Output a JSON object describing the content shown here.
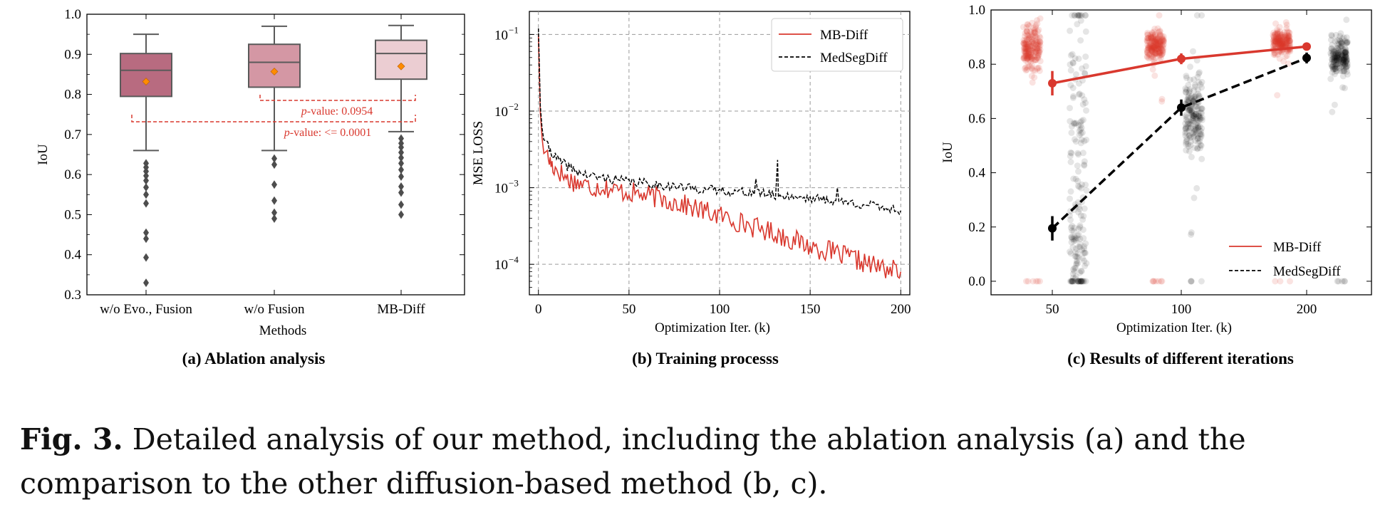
{
  "chart_data": [
    {
      "type": "box",
      "panel_label": "(a) Ablation analysis",
      "xlabel": "Methods",
      "ylabel": "IoU",
      "ylim": [
        0.3,
        1.0
      ],
      "yticks": [
        0.3,
        0.4,
        0.5,
        0.6,
        0.7,
        0.8,
        0.9,
        1.0
      ],
      "categories": [
        "w/o Evo., Fusion",
        "w/o Fusion",
        "MB-Diff"
      ],
      "boxes": [
        {
          "category": "w/o Evo., Fusion",
          "color": "#b86b80",
          "whisker_low": 0.66,
          "q1": 0.795,
          "median": 0.86,
          "q3": 0.902,
          "whisker_high": 0.95,
          "mean": 0.832,
          "outliers": [
            0.628,
            0.618,
            0.608,
            0.597,
            0.585,
            0.568,
            0.55,
            0.528,
            0.455,
            0.44,
            0.393,
            0.33
          ]
        },
        {
          "category": "w/o Fusion",
          "color": "#d497a4",
          "whisker_low": 0.66,
          "q1": 0.818,
          "median": 0.88,
          "q3": 0.925,
          "whisker_high": 0.97,
          "mean": 0.857,
          "outliers": [
            0.64,
            0.625,
            0.575,
            0.535,
            0.505,
            0.49
          ]
        },
        {
          "category": "MB-Diff",
          "color": "#ebcdd2",
          "whisker_low": 0.707,
          "q1": 0.838,
          "median": 0.902,
          "q3": 0.935,
          "whisker_high": 0.972,
          "mean": 0.87,
          "outliers": [
            0.69,
            0.678,
            0.668,
            0.655,
            0.642,
            0.628,
            0.612,
            0.595,
            0.57,
            0.555,
            0.525,
            0.5
          ]
        }
      ],
      "annotations": [
        {
          "prefix": "p",
          "text": "-value: 0.0954",
          "between": [
            "w/o Fusion",
            "MB-Diff"
          ]
        },
        {
          "prefix": "p",
          "text": "-value: <= 0.0001",
          "between": [
            "w/o Evo., Fusion",
            "MB-Diff"
          ]
        }
      ],
      "colors": {
        "mean_marker": "#ff8c00",
        "annotation": "#d9382e"
      }
    },
    {
      "type": "line",
      "panel_label": "(b) Training processs",
      "xlabel": "Optimization Iter. (k)",
      "ylabel": "MSE LOSS",
      "yscale": "log",
      "xlim": [
        -5,
        205
      ],
      "ylim": [
        4e-05,
        0.2
      ],
      "xticks": [
        0,
        50,
        100,
        150,
        200
      ],
      "yticks": [
        0.0001,
        0.001,
        0.01,
        0.1
      ],
      "ytick_labels": [
        {
          "base": "10",
          "exp": "−4"
        },
        {
          "base": "10",
          "exp": "−3"
        },
        {
          "base": "10",
          "exp": "−2"
        },
        {
          "base": "10",
          "exp": "−1"
        }
      ],
      "grid": true,
      "legend_position": "top-right",
      "series": [
        {
          "name": "MB-Diff",
          "color": "#d9382e",
          "style": "solid",
          "x": [
            0,
            0.5,
            1,
            2,
            3,
            5,
            8,
            12,
            16,
            20,
            25,
            30,
            35,
            40,
            45,
            50,
            55,
            60,
            65,
            70,
            75,
            80,
            85,
            90,
            95,
            100,
            105,
            110,
            115,
            120,
            125,
            130,
            135,
            140,
            145,
            150,
            155,
            160,
            165,
            170,
            175,
            180,
            185,
            190,
            195,
            200
          ],
          "y": [
            0.1,
            0.03,
            0.01,
            0.0045,
            0.0033,
            0.0025,
            0.0019,
            0.0016,
            0.0013,
            0.0012,
            0.0011,
            0.001,
            0.00105,
            0.00095,
            0.0009,
            0.00088,
            0.00082,
            0.00078,
            0.00075,
            0.0007,
            0.00065,
            0.0006,
            0.00055,
            0.0005,
            0.00047,
            0.00043,
            0.0004,
            0.00036,
            0.00033,
            0.0003,
            0.00028,
            0.00026,
            0.00023,
            0.00021,
            0.00019,
            0.00017,
            0.00016,
            0.00015,
            0.000135,
            0.000125,
            0.000115,
            0.000105,
            9.5e-05,
            9e-05,
            8.5e-05,
            8e-05
          ]
        },
        {
          "name": "MedSegDiff",
          "color": "#000000",
          "style": "dashed",
          "x": [
            0,
            0.5,
            1,
            2,
            3,
            5,
            8,
            12,
            16,
            20,
            25,
            30,
            35,
            40,
            45,
            50,
            55,
            60,
            65,
            70,
            75,
            80,
            85,
            90,
            95,
            100,
            105,
            110,
            115,
            120,
            125,
            130,
            135,
            140,
            145,
            150,
            155,
            160,
            165,
            170,
            175,
            180,
            185,
            190,
            195,
            200
          ],
          "y": [
            0.12,
            0.04,
            0.012,
            0.006,
            0.0045,
            0.0035,
            0.0027,
            0.0022,
            0.0019,
            0.0017,
            0.0015,
            0.0014,
            0.00135,
            0.0013,
            0.00125,
            0.0012,
            0.00117,
            0.00114,
            0.0011,
            0.00107,
            0.00104,
            0.001,
            0.00098,
            0.00096,
            0.00094,
            0.00092,
            0.0009,
            0.00088,
            0.00087,
            0.00086,
            0.00084,
            0.0008,
            0.00079,
            0.00077,
            0.00075,
            0.00073,
            0.00071,
            0.00069,
            0.00067,
            0.00065,
            0.00062,
            0.0006,
            0.00058,
            0.00056,
            0.00053,
            0.0005
          ]
        }
      ],
      "spikes": [
        {
          "x": 132,
          "y": 0.0023
        },
        {
          "x": 120,
          "y": 0.0013
        },
        {
          "x": 165,
          "y": 0.001
        }
      ]
    },
    {
      "type": "scatter",
      "panel_label": "(c) Results of different iterations",
      "xlabel": "Optimization Iter. (k)",
      "ylabel": "IoU",
      "xlim": [
        20,
        240
      ],
      "ylim": [
        -0.05,
        1.0
      ],
      "xticks": [
        50,
        100,
        200
      ],
      "yticks": [
        0.0,
        0.2,
        0.4,
        0.6,
        0.8,
        1.0
      ],
      "legend_position": "bottom-right",
      "series": [
        {
          "name": "MB-Diff",
          "color": "#d9382e",
          "style": "solid",
          "x": [
            50,
            100,
            200
          ],
          "y": [
            0.73,
            0.82,
            0.865
          ],
          "err": [
            0.045,
            0.02,
            0.012
          ]
        },
        {
          "name": "MedSegDiff",
          "color": "#000000",
          "style": "dashed",
          "x": [
            50,
            100,
            200
          ],
          "y": [
            0.195,
            0.64,
            0.823
          ],
          "err": [
            0.045,
            0.03,
            0.02
          ]
        }
      ],
      "strips": [
        {
          "series": "MB-Diff",
          "x": 40,
          "color": "#d9382e",
          "center": 0.86,
          "spread": 0.12
        },
        {
          "series": "MedSegDiff",
          "x": 60,
          "color": "#000000",
          "center": 0.3,
          "spread": 0.35
        },
        {
          "series": "MB-Diff",
          "x": 90,
          "color": "#d9382e",
          "center": 0.86,
          "spread": 0.08
        },
        {
          "series": "MedSegDiff",
          "x": 110,
          "color": "#000000",
          "center": 0.62,
          "spread": 0.2
        },
        {
          "series": "MB-Diff",
          "x": 180,
          "color": "#d9382e",
          "center": 0.88,
          "spread": 0.06
        },
        {
          "series": "MedSegDiff",
          "x": 220,
          "color": "#000000",
          "center": 0.83,
          "spread": 0.1
        }
      ]
    }
  ],
  "caption": {
    "label": "Fig. 3.",
    "text": " Detailed analysis of our method, including the ablation analysis (a) and the comparison to the other diffusion-based method (b, c)."
  }
}
